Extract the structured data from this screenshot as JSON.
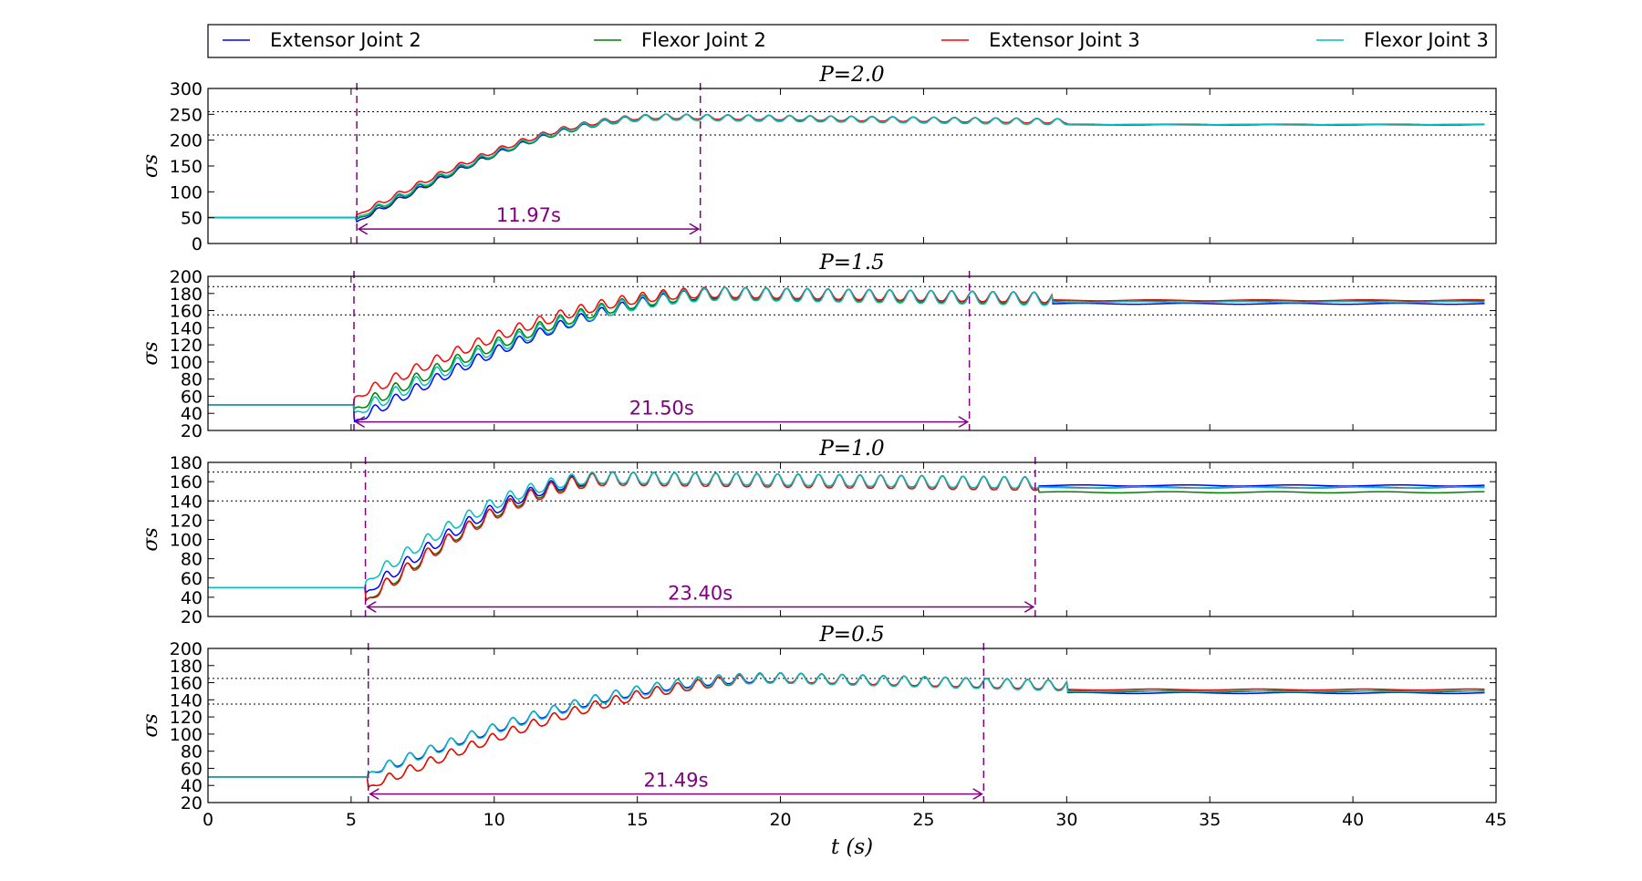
{
  "chart_data": {
    "type": "line",
    "xlabel": "t (s)",
    "xlim": [
      0,
      45
    ],
    "xticks": [
      0,
      5,
      10,
      15,
      20,
      25,
      30,
      35,
      40,
      45
    ],
    "grid": false,
    "legend_position": "top",
    "legend": [
      {
        "name": "Extensor Joint 2",
        "color": "#0000ff"
      },
      {
        "name": "Flexor Joint 2",
        "color": "#008000"
      },
      {
        "name": "Extensor Joint 3",
        "color": "#ff0000"
      },
      {
        "name": "Flexor Joint 3",
        "color": "#00bfbf"
      }
    ],
    "annotation_color": "#800080",
    "panels": [
      {
        "title": "P=2.0",
        "ylabel": "σs",
        "ylim": [
          0,
          300
        ],
        "yticks": [
          0,
          50,
          100,
          150,
          200,
          250,
          300
        ],
        "hlines": [
          255,
          210
        ],
        "vlines": [
          5.2,
          17.2
        ],
        "arrow": {
          "x1": 5.2,
          "x2": 17.2,
          "y": 28
        },
        "annotation": "11.97s",
        "rise_start": 5.2,
        "peak_time": 16.0,
        "step_time": 30.0,
        "initial": 50,
        "peak": 245,
        "final": 230,
        "offsets": [
          -8,
          -3,
          5,
          0
        ],
        "amplitude": 9,
        "dip_bias": [
          0,
          8,
          0,
          6
        ],
        "final_offsets": [
          0,
          0,
          0,
          0
        ]
      },
      {
        "title": "P=1.5",
        "ylabel": "σs",
        "ylim": [
          20,
          200
        ],
        "yticks": [
          20,
          40,
          60,
          80,
          100,
          120,
          140,
          160,
          180,
          200
        ],
        "hlines": [
          188,
          155
        ],
        "vlines": [
          5.1,
          26.6
        ],
        "arrow": {
          "x1": 5.1,
          "x2": 26.6,
          "y": 30
        },
        "annotation": "21.50s",
        "rise_start": 5.1,
        "peak_time": 18.0,
        "step_time": 29.5,
        "initial": 50,
        "peak": 180,
        "final": 170,
        "offsets": [
          -20,
          -5,
          8,
          -10
        ],
        "amplitude": 12,
        "dip_bias": [
          0,
          6,
          0,
          10
        ],
        "final_offsets": [
          -2,
          1,
          2,
          0
        ]
      },
      {
        "title": "P=1.0",
        "ylabel": "σs",
        "ylim": [
          20,
          180
        ],
        "yticks": [
          20,
          40,
          60,
          80,
          100,
          120,
          140,
          160,
          180
        ],
        "hlines": [
          170,
          140
        ],
        "vlines": [
          5.5,
          28.9
        ],
        "arrow": {
          "x1": 5.5,
          "x2": 28.9,
          "y": 30
        },
        "annotation": "23.40s",
        "rise_start": 5.5,
        "peak_time": 14.0,
        "step_time": 29.0,
        "initial": 50,
        "peak": 163,
        "final": 154,
        "offsets": [
          -6,
          -14,
          -14,
          6
        ],
        "amplitude": 12,
        "dip_bias": [
          0,
          0,
          6,
          0
        ],
        "final_offsets": [
          2,
          -5,
          0,
          0
        ]
      },
      {
        "title": "P=0.5",
        "ylabel": "σs",
        "ylim": [
          20,
          200
        ],
        "yticks": [
          20,
          40,
          60,
          80,
          100,
          120,
          140,
          160,
          180,
          200
        ],
        "hlines": [
          165,
          135
        ],
        "vlines": [
          5.6,
          27.1
        ],
        "arrow": {
          "x1": 5.6,
          "x2": 27.1,
          "y": 30
        },
        "annotation": "21.49s",
        "rise_start": 5.6,
        "peak_time": 20.0,
        "step_time": 30.0,
        "initial": 50,
        "peak": 165,
        "final": 150,
        "offsets": [
          4,
          -12,
          -12,
          4
        ],
        "amplitude": 11,
        "dip_bias": [
          0,
          0,
          0,
          4
        ],
        "final_offsets": [
          -2,
          0,
          2,
          0
        ]
      }
    ]
  }
}
